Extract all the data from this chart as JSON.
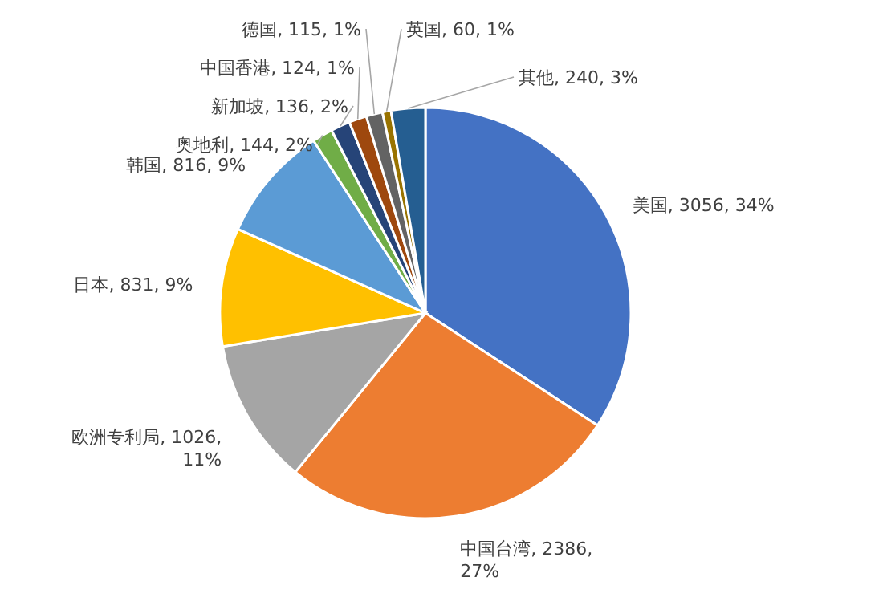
{
  "chart_data": {
    "type": "pie",
    "categories": [
      "美国",
      "中国台湾",
      "欧洲专利局",
      "日本",
      "韩国",
      "奥地利",
      "新加坡",
      "中国香港",
      "德国",
      "英国",
      "其他"
    ],
    "values": [
      3056,
      2386,
      1026,
      831,
      816,
      144,
      136,
      124,
      115,
      60,
      240
    ],
    "colors": [
      "#4472c4",
      "#ed7d31",
      "#a5a5a5",
      "#ffc000",
      "#5b9bd5",
      "#70ad47",
      "#264478",
      "#9e480e",
      "#636363",
      "#997300",
      "#255e91"
    ],
    "value_labels": [
      "3056, 34%",
      "2386, 27%",
      "1026, 11%",
      "831, 9%",
      "816, 9%",
      "144, 2%",
      "136, 2%",
      "124, 1%",
      "115, 1%",
      "60, 1%",
      "240, 3%"
    ]
  }
}
